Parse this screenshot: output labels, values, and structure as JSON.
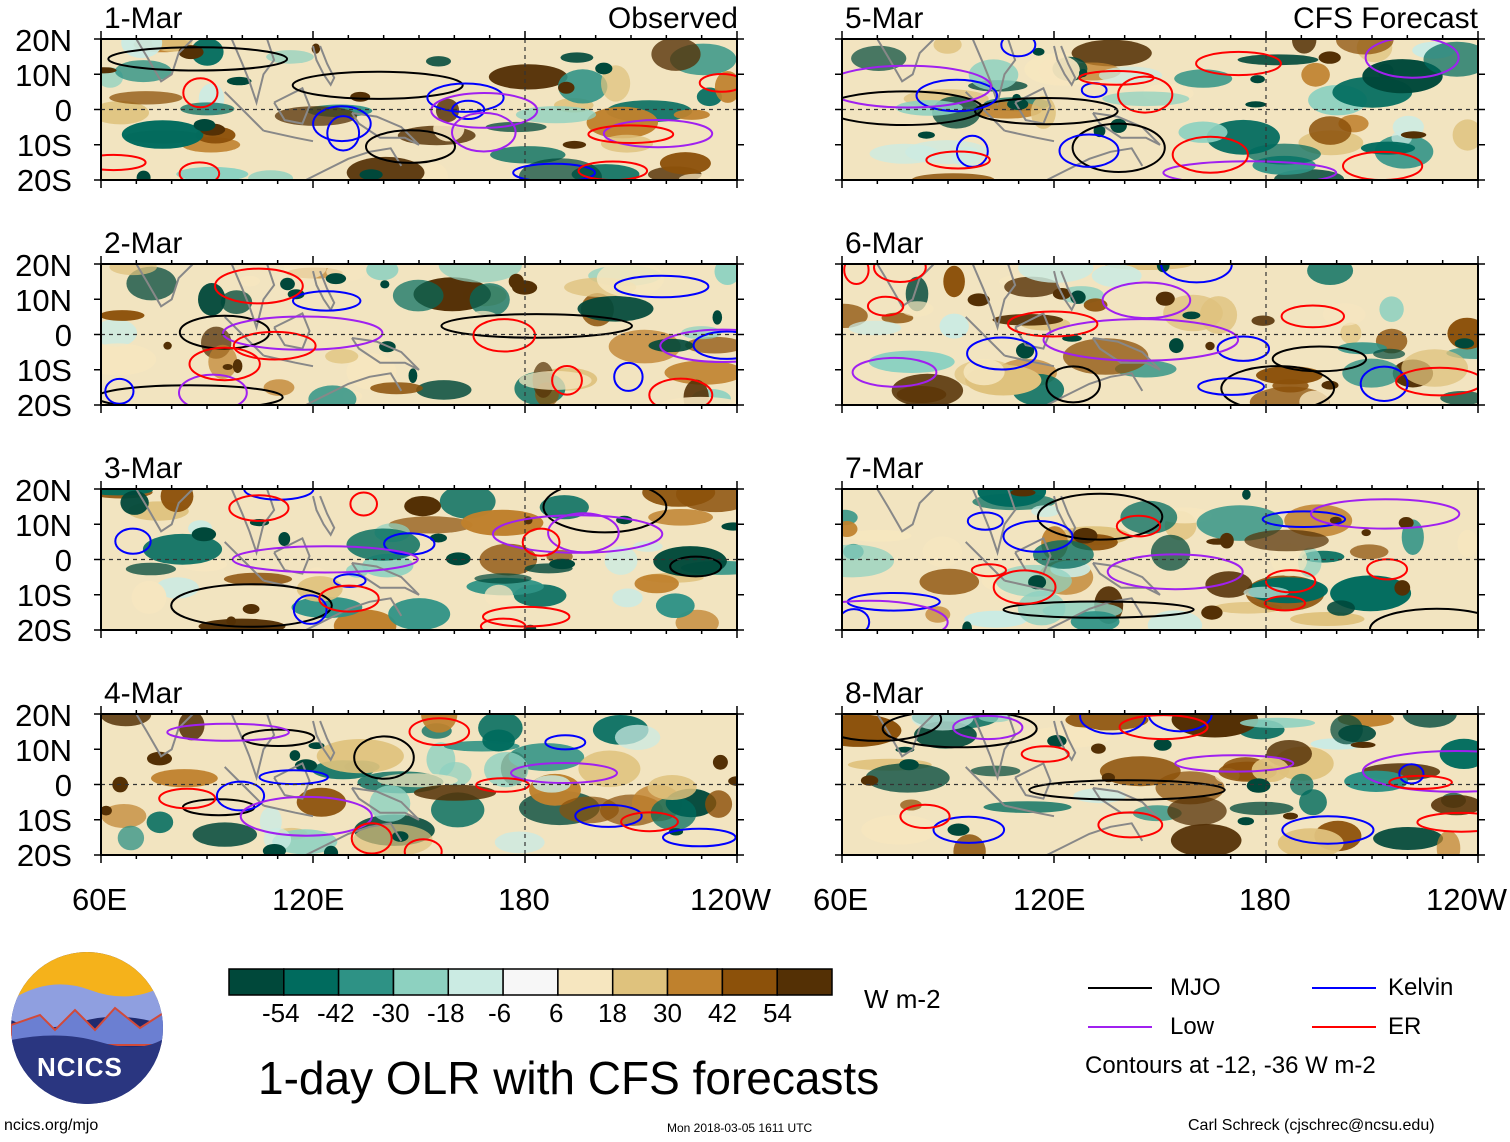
{
  "chart_data": {
    "type": "heatmap",
    "title": "1-day OLR with CFS forecasts",
    "units": "W m-2",
    "x": {
      "ticks": [
        "60E",
        "120E",
        "180",
        "120W"
      ],
      "range_deg_east": [
        60,
        240
      ]
    },
    "y": {
      "ticks": [
        "20N",
        "10N",
        "0",
        "10S",
        "20S"
      ],
      "range_deg": [
        -20,
        20
      ]
    },
    "left_column": {
      "title": "Observed",
      "panels": [
        {
          "date": "1-Mar"
        },
        {
          "date": "2-Mar"
        },
        {
          "date": "3-Mar"
        },
        {
          "date": "4-Mar"
        }
      ]
    },
    "right_column": {
      "title": "CFS Forecast",
      "panels": [
        {
          "date": "5-Mar"
        },
        {
          "date": "6-Mar"
        },
        {
          "date": "7-Mar"
        },
        {
          "date": "8-Mar"
        }
      ]
    },
    "colorbar": {
      "ticks": [
        "-54",
        "-42",
        "-30",
        "-18",
        "-6",
        "6",
        "18",
        "30",
        "42",
        "54"
      ],
      "colors": [
        "#00483a",
        "#006b5e",
        "#2e9285",
        "#8dd1c0",
        "#cbebe3",
        "#f7f7f7",
        "#f6e6bf",
        "#dfc27d",
        "#bf812d",
        "#8c510a",
        "#543005"
      ]
    },
    "legend": [
      {
        "label": "MJO",
        "color": "#000000"
      },
      {
        "label": "Kelvin",
        "color": "#0000ff"
      },
      {
        "label": "Low",
        "color": "#a020f0"
      },
      {
        "label": "ER",
        "color": "#ff0000"
      }
    ],
    "contour_note": "Contours at -12, -36 W m-2"
  },
  "footer": {
    "logo_text": "NCICS",
    "url": "ncics.org/mjo",
    "timestamp": "Mon 2018-03-05 1611 UTC",
    "credit": "Carl Schreck (cjschrec@ncsu.edu)"
  },
  "colors": {
    "coast": "#888888",
    "logo_navy": "#1f2a6e",
    "logo_sun": "#f5b21b"
  }
}
